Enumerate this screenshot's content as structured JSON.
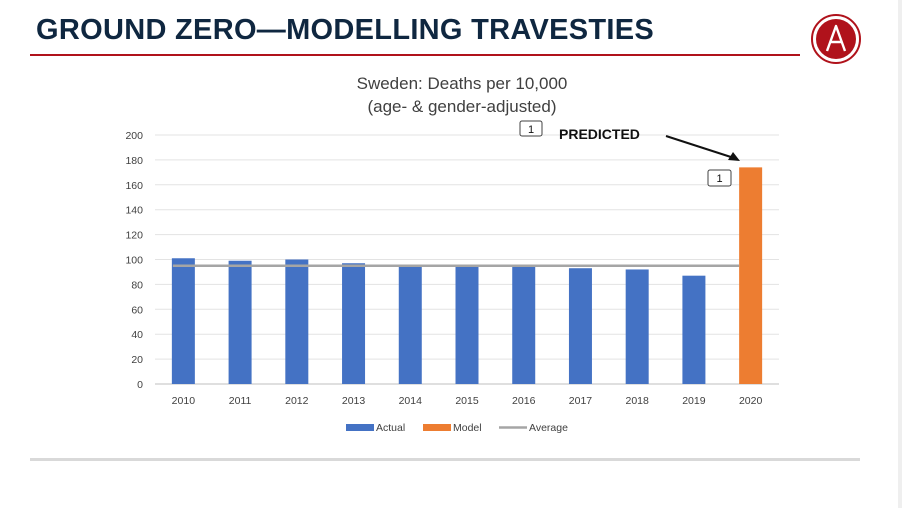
{
  "slide": {
    "title": "GROUND ZERO—MODELLING TRAVESTIES",
    "logo_letter": "A"
  },
  "colors": {
    "title": "#0f2740",
    "accent_red": "#b0121b",
    "actual": "#4472c4",
    "model": "#ed7d31",
    "average": "#a5a5a5"
  },
  "annotations": {
    "predicted_label": "PREDICTED",
    "callout_top": "1",
    "callout_bar": "1"
  },
  "chart_data": {
    "type": "bar",
    "title": "Sweden: Deaths per 10,000",
    "subtitle": "(age- & gender-adjusted)",
    "categories": [
      "2010",
      "2011",
      "2012",
      "2013",
      "2014",
      "2015",
      "2016",
      "2017",
      "2018",
      "2019",
      "2020"
    ],
    "series": [
      {
        "name": "Actual",
        "type": "bar",
        "color": "#4472c4",
        "values": [
          101,
          99,
          100,
          97,
          94,
          94,
          94,
          93,
          92,
          87,
          null
        ]
      },
      {
        "name": "Model",
        "type": "bar",
        "color": "#ed7d31",
        "values": [
          null,
          null,
          null,
          null,
          null,
          null,
          null,
          null,
          null,
          null,
          174
        ]
      },
      {
        "name": "Average",
        "type": "line",
        "color": "#a5a5a5",
        "values": [
          95,
          95,
          95,
          95,
          95,
          95,
          95,
          95,
          95,
          95,
          95
        ]
      }
    ],
    "yticks": [
      0,
      20,
      40,
      60,
      80,
      100,
      120,
      140,
      160,
      180,
      200
    ],
    "ylim": [
      0,
      200
    ],
    "grid": true,
    "legend": "bottom"
  }
}
